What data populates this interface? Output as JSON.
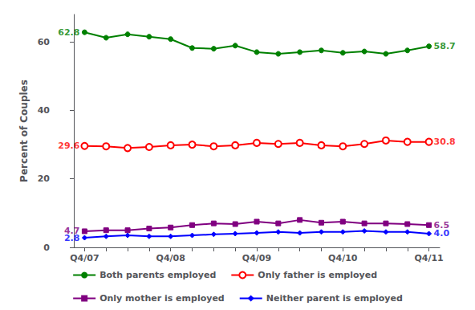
{
  "chart_data": {
    "type": "line",
    "ylabel": "Percent of Couples",
    "categories": [
      "Q4/07",
      null,
      null,
      null,
      "Q4/08",
      null,
      null,
      null,
      "Q4/09",
      null,
      null,
      null,
      "Q4/10",
      null,
      null,
      null,
      "Q4/11"
    ],
    "series": [
      {
        "name": "Both parents employed",
        "color": "#008000",
        "marker": "circle",
        "values": [
          62.8,
          61.2,
          62.2,
          61.5,
          60.8,
          58.2,
          58.0,
          58.9,
          57.0,
          56.5,
          57.0,
          57.5,
          56.8,
          57.2,
          56.5,
          57.5,
          58.7
        ]
      },
      {
        "name": "Only father is employed",
        "color": "#ff0000",
        "marker": "open_circle",
        "values": [
          29.6,
          29.5,
          29.0,
          29.3,
          29.8,
          30.0,
          29.5,
          29.8,
          30.5,
          30.2,
          30.5,
          29.8,
          29.5,
          30.2,
          31.2,
          30.8,
          30.8
        ]
      },
      {
        "name": "Only mother is employed",
        "color": "#800080",
        "marker": "square",
        "values": [
          4.7,
          5.0,
          5.0,
          5.5,
          5.8,
          6.5,
          7.0,
          6.8,
          7.5,
          7.0,
          8.0,
          7.2,
          7.5,
          7.0,
          7.0,
          6.8,
          6.5
        ]
      },
      {
        "name": "Neither parent is employed",
        "color": "#0000ff",
        "marker": "diamond",
        "values": [
          2.8,
          3.2,
          3.5,
          3.2,
          3.2,
          3.5,
          3.8,
          4.0,
          4.2,
          4.5,
          4.2,
          4.5,
          4.5,
          4.8,
          4.5,
          4.5,
          4.0
        ]
      }
    ],
    "annotations": [
      {
        "text": "62.8",
        "x": "Q4/07",
        "y": 62.8,
        "color": "#008000"
      },
      {
        "text": "29.6",
        "x": "Q4/07",
        "y": 29.6,
        "color": "#ff0000"
      },
      {
        "text": "4.7",
        "x": "Q4/07",
        "y": 4.7,
        "color": "#800080"
      },
      {
        "text": "2.8",
        "x": "Q4/07",
        "y": 2.8,
        "color": "#0000ff"
      },
      {
        "text": "58.7",
        "x": "Q4/11",
        "y": 58.7,
        "color": "#008000"
      },
      {
        "text": "30.8",
        "x": "Q4/11",
        "y": 30.8,
        "color": "#ff0000"
      },
      {
        "text": "6.5",
        "x": "Q4/11",
        "y": 6.5,
        "color": "#800080"
      },
      {
        "text": "4.0",
        "x": "Q4/11",
        "y": 4.0,
        "color": "#0000ff"
      }
    ],
    "ylim": [
      0,
      68
    ],
    "yticks": [
      0,
      20,
      40,
      60
    ],
    "grid": false,
    "legend": "bottom"
  }
}
